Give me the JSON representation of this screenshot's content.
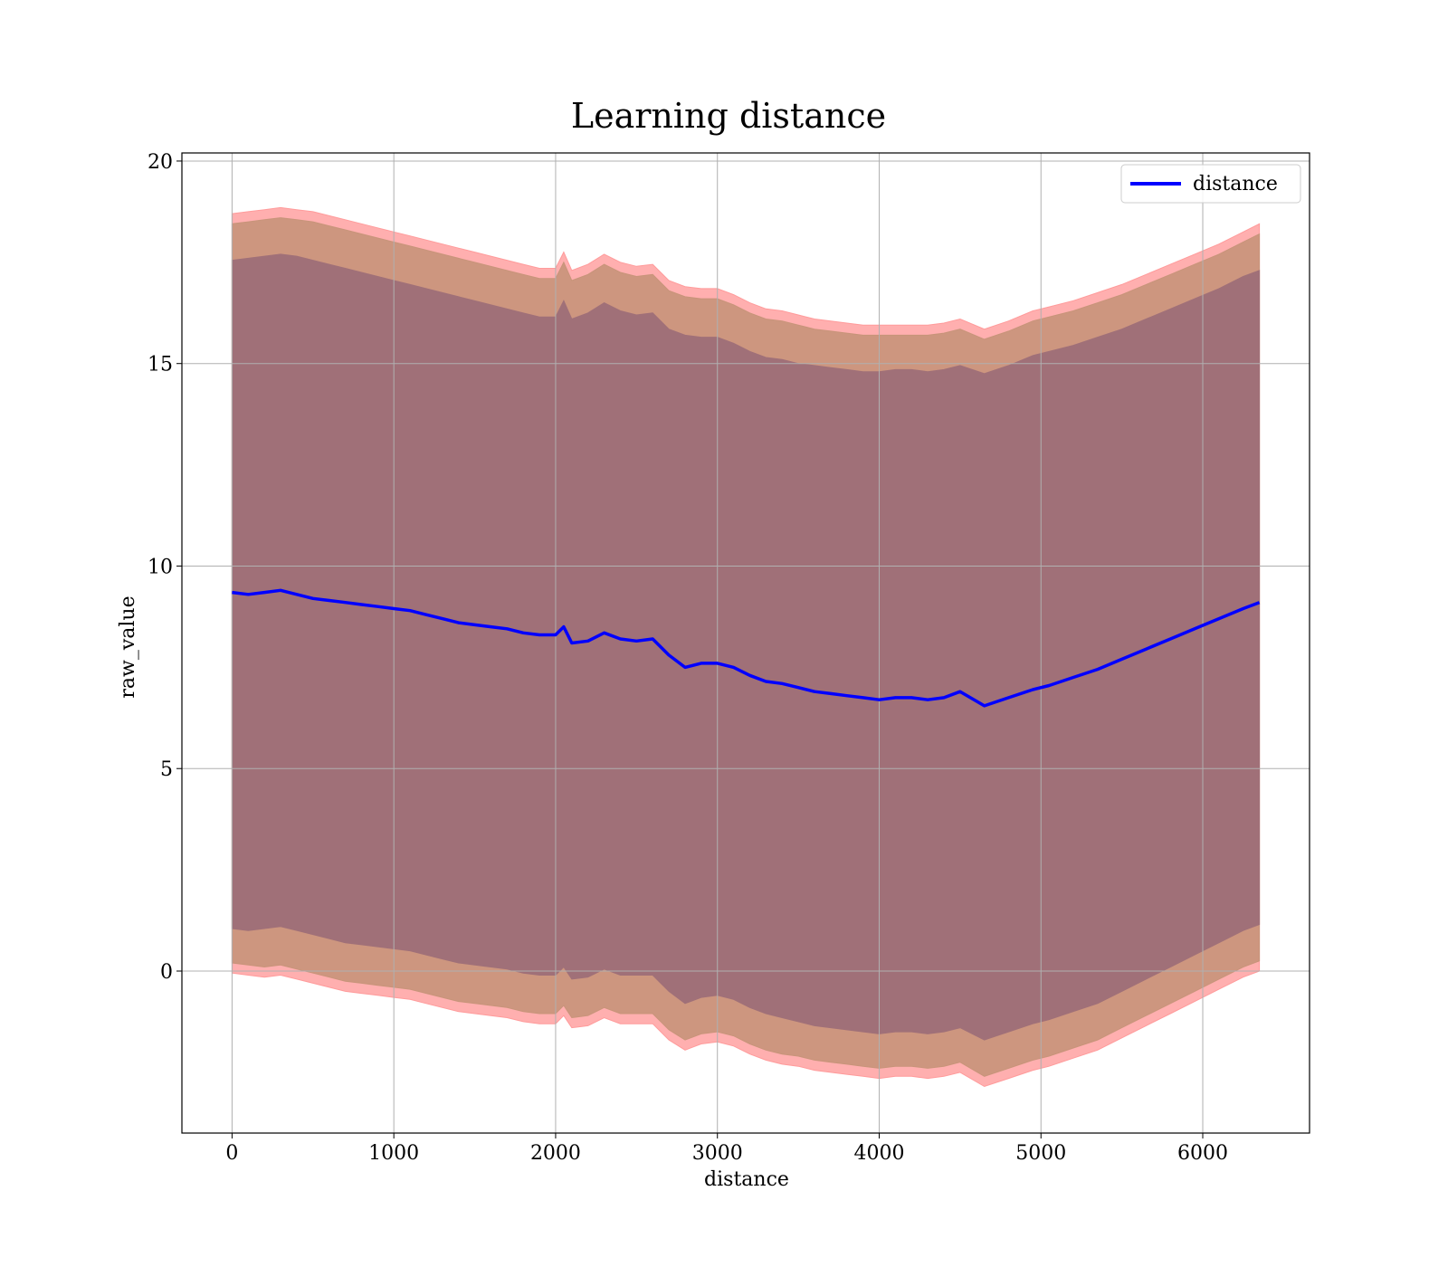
{
  "chart_data": {
    "type": "line",
    "title": "Learning distance",
    "xlabel": "distance",
    "ylabel": "raw_value",
    "xlim": [
      -310,
      6660
    ],
    "ylim": [
      -4,
      20.2
    ],
    "xticks": [
      0,
      1000,
      2000,
      3000,
      4000,
      5000,
      6000
    ],
    "yticks": [
      0,
      5,
      10,
      15,
      20
    ],
    "grid": true,
    "legend": {
      "position": "top-right",
      "entries": [
        "distance"
      ]
    },
    "colors": {
      "line": "#0000ff",
      "outer_band": "#ff9b9b",
      "mid_band": "#c8947a",
      "inner_band": "#a07078",
      "grid": "#b0b0b0"
    },
    "x": [
      0,
      100,
      200,
      300,
      400,
      500,
      600,
      700,
      800,
      900,
      1000,
      1100,
      1200,
      1300,
      1400,
      1500,
      1600,
      1700,
      1800,
      1900,
      2000,
      2050,
      2100,
      2200,
      2300,
      2400,
      2500,
      2600,
      2700,
      2800,
      2900,
      3000,
      3100,
      3200,
      3300,
      3400,
      3500,
      3600,
      3700,
      3800,
      3900,
      4000,
      4100,
      4200,
      4300,
      4400,
      4500,
      4650,
      4800,
      4950,
      5050,
      5200,
      5350,
      5500,
      5650,
      5800,
      5950,
      6100,
      6250,
      6350
    ],
    "series": [
      {
        "name": "distance",
        "values": [
          9.35,
          9.3,
          9.35,
          9.4,
          9.3,
          9.2,
          9.15,
          9.1,
          9.05,
          9.0,
          8.95,
          8.9,
          8.8,
          8.7,
          8.6,
          8.55,
          8.5,
          8.45,
          8.35,
          8.3,
          8.3,
          8.5,
          8.1,
          8.15,
          8.35,
          8.2,
          8.15,
          8.2,
          7.8,
          7.5,
          7.6,
          7.6,
          7.5,
          7.3,
          7.15,
          7.1,
          7.0,
          6.9,
          6.85,
          6.8,
          6.75,
          6.7,
          6.75,
          6.75,
          6.7,
          6.75,
          6.9,
          6.55,
          6.75,
          6.95,
          7.05,
          7.25,
          7.45,
          7.7,
          7.95,
          8.2,
          8.45,
          8.7,
          8.95,
          9.1
        ]
      }
    ],
    "bands": [
      {
        "label": "outer",
        "upper": [
          18.7,
          18.75,
          18.8,
          18.85,
          18.8,
          18.75,
          18.65,
          18.55,
          18.45,
          18.35,
          18.25,
          18.15,
          18.05,
          17.95,
          17.85,
          17.75,
          17.65,
          17.55,
          17.45,
          17.35,
          17.35,
          17.75,
          17.3,
          17.45,
          17.7,
          17.5,
          17.4,
          17.45,
          17.05,
          16.9,
          16.85,
          16.85,
          16.7,
          16.5,
          16.35,
          16.3,
          16.2,
          16.1,
          16.05,
          16.0,
          15.95,
          15.95,
          15.95,
          15.95,
          15.95,
          16.0,
          16.1,
          15.85,
          16.05,
          16.3,
          16.4,
          16.55,
          16.75,
          16.95,
          17.2,
          17.45,
          17.7,
          17.95,
          18.25,
          18.45
        ],
        "lower": [
          -0.05,
          -0.1,
          -0.15,
          -0.1,
          -0.2,
          -0.3,
          -0.4,
          -0.5,
          -0.55,
          -0.6,
          -0.65,
          -0.7,
          -0.8,
          -0.9,
          -1.0,
          -1.05,
          -1.1,
          -1.15,
          -1.25,
          -1.3,
          -1.3,
          -1.1,
          -1.4,
          -1.35,
          -1.15,
          -1.3,
          -1.3,
          -1.3,
          -1.7,
          -1.95,
          -1.8,
          -1.75,
          -1.85,
          -2.05,
          -2.2,
          -2.3,
          -2.35,
          -2.45,
          -2.5,
          -2.55,
          -2.6,
          -2.65,
          -2.6,
          -2.6,
          -2.65,
          -2.6,
          -2.5,
          -2.85,
          -2.65,
          -2.45,
          -2.35,
          -2.15,
          -1.95,
          -1.65,
          -1.35,
          -1.05,
          -0.75,
          -0.45,
          -0.15,
          0.0
        ]
      },
      {
        "label": "mid",
        "upper": [
          18.45,
          18.5,
          18.55,
          18.6,
          18.55,
          18.5,
          18.4,
          18.3,
          18.2,
          18.1,
          18.0,
          17.9,
          17.8,
          17.7,
          17.6,
          17.5,
          17.4,
          17.3,
          17.2,
          17.1,
          17.1,
          17.5,
          17.05,
          17.2,
          17.45,
          17.25,
          17.15,
          17.2,
          16.8,
          16.65,
          16.6,
          16.6,
          16.45,
          16.25,
          16.1,
          16.05,
          15.95,
          15.85,
          15.8,
          15.75,
          15.7,
          15.7,
          15.7,
          15.7,
          15.7,
          15.75,
          15.85,
          15.6,
          15.8,
          16.05,
          16.15,
          16.3,
          16.5,
          16.7,
          16.95,
          17.2,
          17.45,
          17.7,
          18.0,
          18.2
        ],
        "lower": [
          0.2,
          0.15,
          0.1,
          0.15,
          0.05,
          -0.05,
          -0.15,
          -0.25,
          -0.3,
          -0.35,
          -0.4,
          -0.45,
          -0.55,
          -0.65,
          -0.75,
          -0.8,
          -0.85,
          -0.9,
          -1.0,
          -1.05,
          -1.05,
          -0.85,
          -1.15,
          -1.1,
          -0.9,
          -1.05,
          -1.05,
          -1.05,
          -1.45,
          -1.7,
          -1.55,
          -1.5,
          -1.6,
          -1.8,
          -1.95,
          -2.05,
          -2.1,
          -2.2,
          -2.25,
          -2.3,
          -2.35,
          -2.4,
          -2.35,
          -2.35,
          -2.4,
          -2.35,
          -2.25,
          -2.6,
          -2.4,
          -2.2,
          -2.1,
          -1.9,
          -1.7,
          -1.4,
          -1.1,
          -0.8,
          -0.5,
          -0.2,
          0.1,
          0.25
        ]
      },
      {
        "label": "inner",
        "upper": [
          17.55,
          17.6,
          17.65,
          17.7,
          17.65,
          17.55,
          17.45,
          17.35,
          17.25,
          17.15,
          17.05,
          16.95,
          16.85,
          16.75,
          16.65,
          16.55,
          16.45,
          16.35,
          16.25,
          16.15,
          16.15,
          16.55,
          16.1,
          16.25,
          16.5,
          16.3,
          16.2,
          16.25,
          15.85,
          15.7,
          15.65,
          15.65,
          15.5,
          15.3,
          15.15,
          15.1,
          15.0,
          14.95,
          14.9,
          14.85,
          14.8,
          14.8,
          14.85,
          14.85,
          14.8,
          14.85,
          14.95,
          14.75,
          14.95,
          15.2,
          15.3,
          15.45,
          15.65,
          15.85,
          16.1,
          16.35,
          16.6,
          16.85,
          17.15,
          17.3
        ],
        "lower": [
          1.05,
          1.0,
          1.05,
          1.1,
          1.0,
          0.9,
          0.8,
          0.7,
          0.65,
          0.6,
          0.55,
          0.5,
          0.4,
          0.3,
          0.2,
          0.15,
          0.1,
          0.05,
          -0.05,
          -0.1,
          -0.1,
          0.1,
          -0.2,
          -0.15,
          0.05,
          -0.1,
          -0.1,
          -0.1,
          -0.5,
          -0.8,
          -0.65,
          -0.6,
          -0.7,
          -0.9,
          -1.05,
          -1.15,
          -1.25,
          -1.35,
          -1.4,
          -1.45,
          -1.5,
          -1.55,
          -1.5,
          -1.5,
          -1.55,
          -1.5,
          -1.4,
          -1.7,
          -1.5,
          -1.3,
          -1.2,
          -1.0,
          -0.8,
          -0.5,
          -0.2,
          0.1,
          0.4,
          0.7,
          1.0,
          1.15
        ]
      }
    ]
  }
}
